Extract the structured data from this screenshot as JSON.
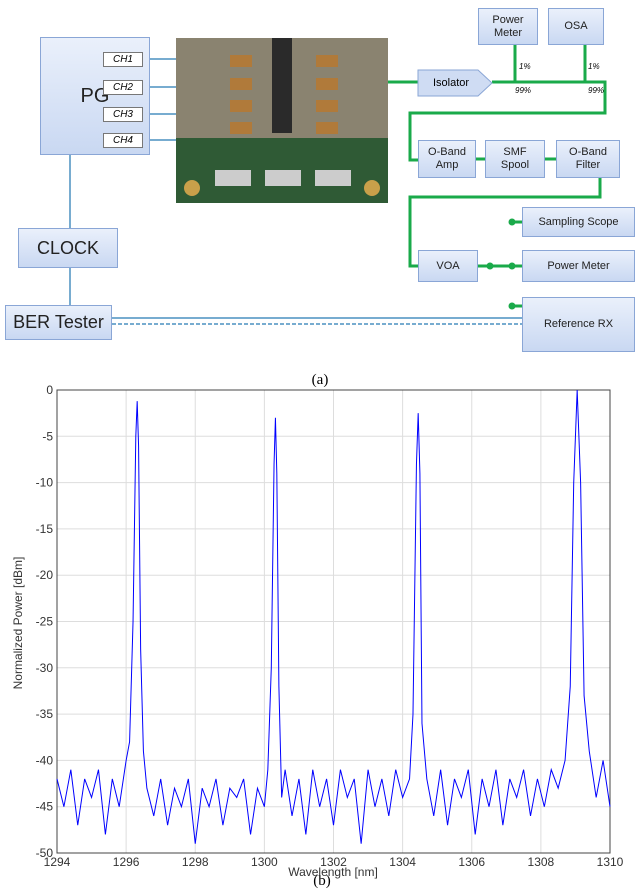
{
  "diagram": {
    "nodes": {
      "pg": "PG",
      "ch1": "CH1",
      "ch2": "CH2",
      "ch3": "CH3",
      "ch4": "CH4",
      "clock": "CLOCK",
      "ber": "BER Tester",
      "isolator": "Isolator",
      "power_meter_top": "Power Meter",
      "osa": "OSA",
      "amp": "O-Band Amp",
      "spool": "SMF Spool",
      "filter": "O-Band Filter",
      "scope": "Sampling Scope",
      "power_meter": "Power Meter",
      "voa": "VOA",
      "ref_rx": "Reference RX"
    },
    "splits": [
      "1%",
      "99%",
      "1%",
      "99%"
    ]
  },
  "captions": [
    "(a)",
    "(b)"
  ],
  "chart_data": {
    "type": "line",
    "xlabel": "Wavelength [nm]",
    "ylabel": "Normalized Power [dBm]",
    "x": [
      1294,
      1294.2,
      1294.4,
      1294.6,
      1294.8,
      1295,
      1295.2,
      1295.4,
      1295.6,
      1295.8,
      1296,
      1296.1,
      1296.2,
      1296.28,
      1296.32,
      1296.36,
      1296.42,
      1296.5,
      1296.6,
      1296.8,
      1297,
      1297.2,
      1297.4,
      1297.6,
      1297.8,
      1298,
      1298.2,
      1298.4,
      1298.6,
      1298.8,
      1299,
      1299.2,
      1299.4,
      1299.6,
      1299.8,
      1300,
      1300.1,
      1300.2,
      1300.28,
      1300.32,
      1300.36,
      1300.42,
      1300.5,
      1300.6,
      1300.8,
      1301,
      1301.2,
      1301.4,
      1301.6,
      1301.8,
      1302,
      1302.2,
      1302.4,
      1302.6,
      1302.8,
      1303,
      1303.2,
      1303.4,
      1303.6,
      1303.8,
      1304,
      1304.2,
      1304.3,
      1304.4,
      1304.45,
      1304.5,
      1304.56,
      1304.7,
      1304.9,
      1305.1,
      1305.3,
      1305.5,
      1305.7,
      1305.9,
      1306.1,
      1306.3,
      1306.5,
      1306.7,
      1306.9,
      1307.1,
      1307.3,
      1307.5,
      1307.7,
      1307.9,
      1308.1,
      1308.3,
      1308.5,
      1308.7,
      1308.85,
      1308.95,
      1309.05,
      1309.15,
      1309.25,
      1309.4,
      1309.6,
      1309.8,
      1310
    ],
    "series": [
      {
        "color": "#0000ff",
        "values": [
          -42,
          -45,
          -41,
          -47,
          -42,
          -44,
          -41,
          -48,
          -42,
          -45,
          -40,
          -38,
          -25,
          -5,
          -1.2,
          -6,
          -28,
          -39,
          -43,
          -46,
          -42,
          -47,
          -43,
          -45,
          -42,
          -49,
          -43,
          -45,
          -42,
          -47,
          -43,
          -44,
          -42,
          -48,
          -43,
          -45,
          -41,
          -30,
          -8,
          -3,
          -9,
          -32,
          -44,
          -41,
          -46,
          -42,
          -48,
          -41,
          -45,
          -42,
          -47,
          -41,
          -44,
          -42,
          -49,
          -41,
          -45,
          -42,
          -46,
          -41,
          -44,
          -42,
          -35,
          -8,
          -2.5,
          -9,
          -36,
          -42,
          -46,
          -41,
          -47,
          -42,
          -44,
          -41,
          -48,
          -42,
          -45,
          -41,
          -47,
          -42,
          -44,
          -41,
          -46,
          -42,
          -45,
          -41,
          -43,
          -40,
          -32,
          -10,
          0,
          -10,
          -33,
          -39,
          -44,
          -40,
          -45
        ]
      }
    ],
    "xlim": [
      1294,
      1310
    ],
    "ylim": [
      -50,
      0
    ],
    "xticks": [
      1294,
      1296,
      1298,
      1300,
      1302,
      1304,
      1306,
      1308,
      1310
    ],
    "yticks": [
      -50,
      -45,
      -40,
      -35,
      -30,
      -25,
      -20,
      -15,
      -10,
      -5,
      0
    ],
    "grid": true
  }
}
